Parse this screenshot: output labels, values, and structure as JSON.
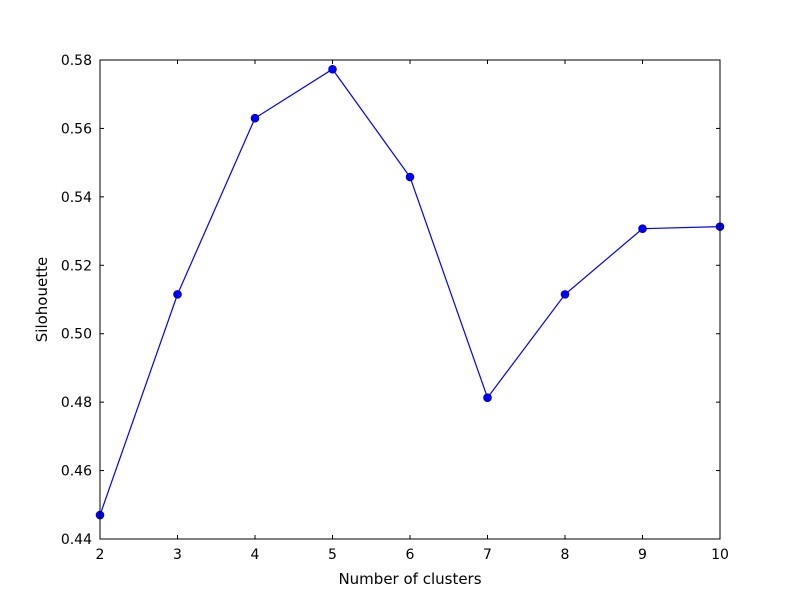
{
  "chart_data": {
    "type": "line",
    "title": "",
    "xlabel": "Number of clusters",
    "ylabel": "Silohouette",
    "x": [
      2,
      3,
      4,
      5,
      6,
      7,
      8,
      9,
      10
    ],
    "series": [
      {
        "values": [
          0.447,
          0.5115,
          0.563,
          0.5773,
          0.5458,
          0.4813,
          0.5115,
          0.5307,
          0.5313
        ],
        "color": "#0000ff",
        "marker": "circle"
      }
    ],
    "xlim": [
      2,
      10
    ],
    "ylim": [
      0.44,
      0.58
    ],
    "xticks": [
      "2",
      "3",
      "4",
      "5",
      "6",
      "7",
      "8",
      "9",
      "10"
    ],
    "yticks": [
      "0.44",
      "0.46",
      "0.48",
      "0.50",
      "0.52",
      "0.54",
      "0.56",
      "0.58"
    ],
    "grid": false,
    "legend": "none"
  }
}
